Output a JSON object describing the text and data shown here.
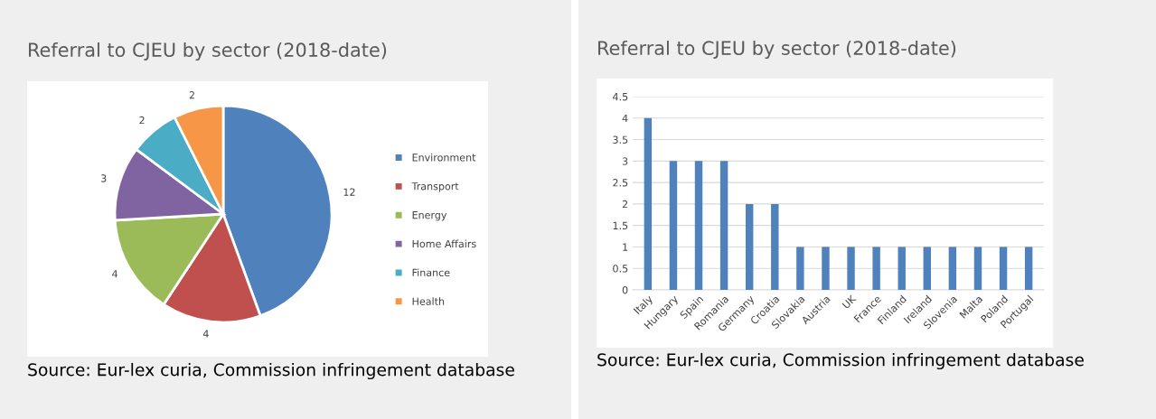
{
  "chart_data": [
    {
      "type": "pie",
      "title": "Referral to CJEU by sector (2018-date)",
      "categories": [
        "Environment",
        "Transport",
        "Energy",
        "Home Affairs",
        "Finance",
        "Health"
      ],
      "values": [
        12,
        4,
        4,
        3,
        2,
        2
      ],
      "colors": [
        "#4f81bd",
        "#c0504d",
        "#9bbb59",
        "#8064a2",
        "#4bacc6",
        "#f79646"
      ],
      "data_labels": true,
      "legend": "right",
      "annotations": [
        "Source: Eur-lex curia, Commission infringement database"
      ]
    },
    {
      "type": "bar",
      "title": "Referral to CJEU by sector (2018-date)",
      "categories": [
        "Italy",
        "Hungary",
        "Spain",
        "Romania",
        "Germany",
        "Croatia",
        "Slovakia",
        "Austria",
        "UK",
        "France",
        "Finland",
        "Ireland",
        "Slovenia",
        "Malta",
        "Poland",
        "Portugal"
      ],
      "values": [
        4,
        3,
        3,
        3,
        2,
        2,
        1,
        1,
        1,
        1,
        1,
        1,
        1,
        1,
        1,
        1
      ],
      "color": "#4f81bd",
      "ylim": [
        0,
        4.5
      ],
      "yticks": [
        0,
        0.5,
        1,
        1.5,
        2,
        2.5,
        3,
        3.5,
        4,
        4.5
      ],
      "grid": "y",
      "annotations": [
        "Source: Eur-lex curia, Commission infringement database"
      ]
    }
  ]
}
